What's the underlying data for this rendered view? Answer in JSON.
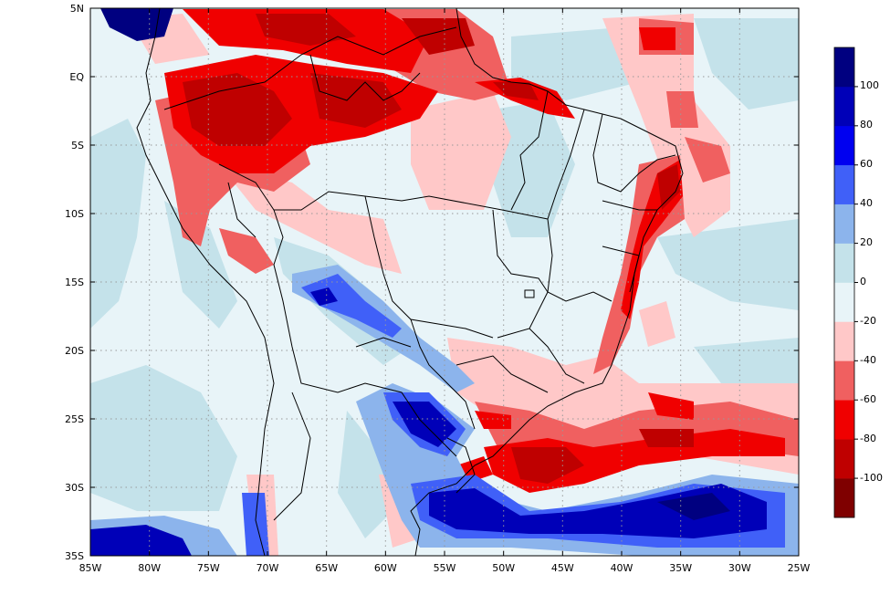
{
  "map": {
    "lon_labels": [
      "85W",
      "80W",
      "75W",
      "70W",
      "65W",
      "60W",
      "55W",
      "50W",
      "45W",
      "40W",
      "35W",
      "30W",
      "25W"
    ],
    "lat_labels": [
      "5N",
      "EQ",
      "5S",
      "10S",
      "15S",
      "20S",
      "25S",
      "30S",
      "35S"
    ],
    "extent": {
      "lon": [
        -85,
        -25
      ],
      "lat": [
        -35,
        5
      ]
    }
  },
  "colorbar": {
    "bins": [
      {
        "color": "#7f0000"
      },
      {
        "color": "#bf0000"
      },
      {
        "color": "#f00000"
      },
      {
        "color": "#f06060"
      },
      {
        "color": "#ffc8c8"
      },
      {
        "color": "#e8f4f8"
      },
      {
        "color": "#c4e2ea"
      },
      {
        "color": "#8cb4ec"
      },
      {
        "color": "#4060f8"
      },
      {
        "color": "#0000f0"
      },
      {
        "color": "#0000b8"
      },
      {
        "color": "#000080"
      }
    ],
    "labels": [
      "100",
      "80",
      "60",
      "40",
      "20",
      "0",
      "-20",
      "-40",
      "-60",
      "-80",
      "-100"
    ]
  },
  "colors": {
    "background_field": "#e8f4f8",
    "light_blue": "#c4e2ea",
    "pink": "#ffc8c8",
    "salmon": "#f06060",
    "red": "#f00000",
    "dark_red": "#bf0000",
    "blue": "#4060f8",
    "dark_blue": "#0000b8"
  }
}
